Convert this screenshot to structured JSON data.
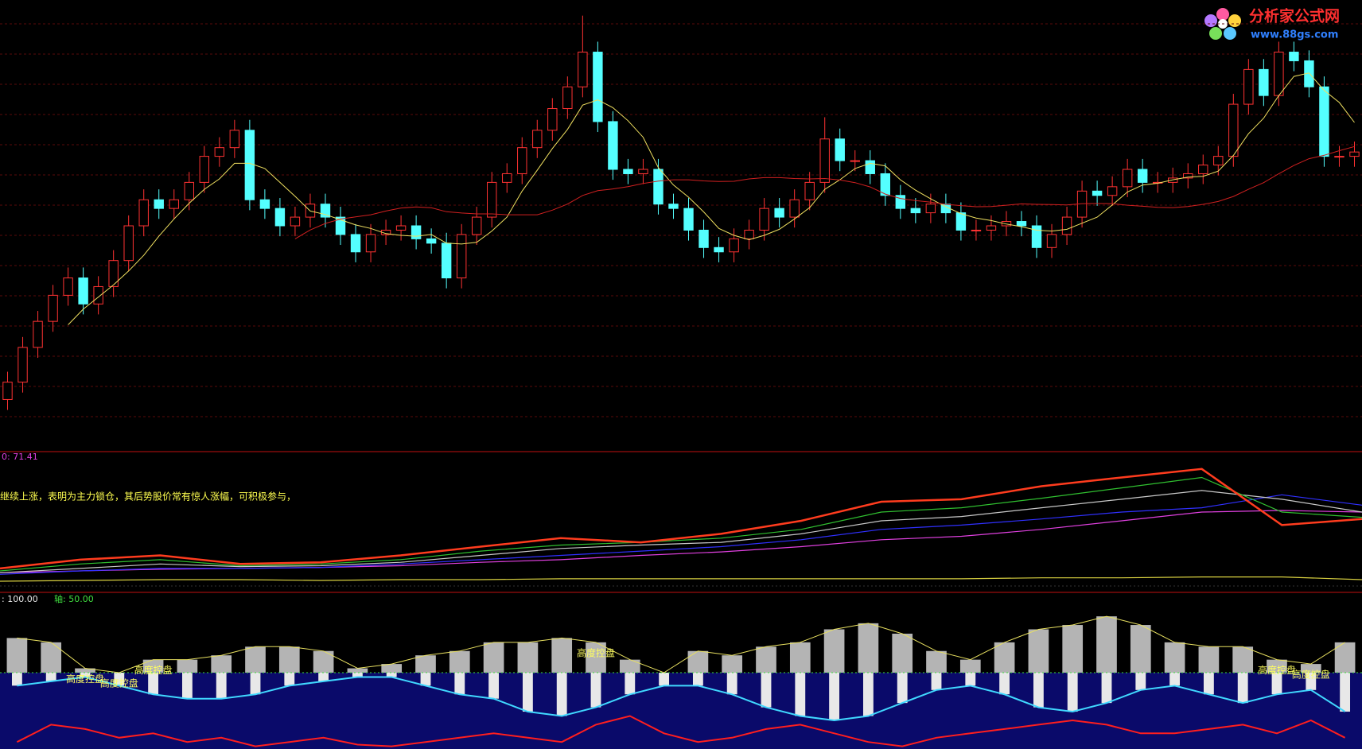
{
  "logo": {
    "name": "分析家公式网",
    "url": "www.88gs.com"
  },
  "chart_data": [
    {
      "type": "candlestick",
      "ylim": [
        0,
        520
      ],
      "up_color": "#ff3232",
      "down_color": "#54ffff",
      "open": [
        60,
        80,
        120,
        150,
        180,
        200,
        170,
        190,
        220,
        260,
        290,
        280,
        290,
        310,
        340,
        350,
        370,
        290,
        280,
        260,
        270,
        285,
        270,
        250,
        230,
        250,
        255,
        260,
        245,
        240,
        200,
        250,
        270,
        310,
        320,
        350,
        370,
        395,
        420,
        460,
        380,
        325,
        320,
        325,
        285,
        280,
        255,
        235,
        230,
        245,
        255,
        280,
        270,
        290,
        310,
        360,
        335,
        335,
        320,
        295,
        280,
        275,
        285,
        275,
        255,
        255,
        260,
        265,
        260,
        235,
        250,
        270,
        300,
        295,
        305,
        325,
        310,
        310,
        315,
        320,
        330,
        340,
        400,
        440,
        410,
        460,
        450,
        420,
        340,
        340
      ],
      "high": [
        92,
        132,
        162,
        192,
        212,
        212,
        202,
        232,
        272,
        302,
        302,
        302,
        322,
        352,
        362,
        382,
        382,
        302,
        292,
        282,
        297,
        297,
        282,
        262,
        262,
        267,
        272,
        272,
        257,
        252,
        262,
        282,
        322,
        332,
        362,
        382,
        407,
        432,
        502,
        472,
        392,
        337,
        337,
        337,
        297,
        292,
        267,
        247,
        257,
        267,
        292,
        292,
        302,
        322,
        385,
        372,
        347,
        347,
        332,
        307,
        292,
        297,
        297,
        287,
        267,
        272,
        277,
        277,
        272,
        262,
        282,
        312,
        312,
        317,
        337,
        337,
        322,
        327,
        332,
        342,
        352,
        412,
        452,
        452,
        472,
        472,
        462,
        432,
        352,
        357
      ],
      "low": [
        48,
        68,
        108,
        138,
        168,
        158,
        158,
        178,
        208,
        248,
        268,
        268,
        278,
        298,
        328,
        338,
        278,
        268,
        248,
        248,
        258,
        258,
        238,
        218,
        218,
        238,
        243,
        233,
        228,
        188,
        188,
        238,
        258,
        298,
        308,
        338,
        358,
        383,
        408,
        368,
        313,
        308,
        308,
        273,
        268,
        243,
        223,
        218,
        218,
        233,
        243,
        258,
        258,
        278,
        298,
        323,
        323,
        308,
        283,
        268,
        263,
        263,
        263,
        243,
        243,
        243,
        248,
        248,
        223,
        223,
        238,
        258,
        283,
        283,
        293,
        298,
        298,
        298,
        303,
        308,
        318,
        328,
        388,
        398,
        398,
        438,
        408,
        328,
        328,
        328
      ],
      "close": [
        80,
        120,
        150,
        180,
        200,
        170,
        190,
        220,
        260,
        290,
        280,
        290,
        310,
        340,
        350,
        370,
        290,
        280,
        260,
        270,
        285,
        270,
        250,
        230,
        250,
        255,
        260,
        245,
        240,
        200,
        250,
        270,
        310,
        320,
        350,
        370,
        395,
        420,
        460,
        380,
        325,
        320,
        325,
        285,
        280,
        255,
        235,
        230,
        245,
        255,
        280,
        270,
        290,
        310,
        360,
        335,
        335,
        320,
        295,
        280,
        275,
        285,
        275,
        255,
        255,
        260,
        265,
        260,
        235,
        250,
        270,
        300,
        295,
        305,
        325,
        310,
        310,
        315,
        320,
        330,
        340,
        400,
        440,
        410,
        460,
        450,
        420,
        340,
        340,
        345
      ]
    },
    {
      "type": "line",
      "label": "0: 71.41",
      "note": "继续上涨，表明为主力锁仓，其后势股价常有惊人涨幅，可积极参与，",
      "ylim": [
        0,
        100
      ],
      "series": [
        {
          "color": "#ff3c1e",
          "values": [
            15.6,
            21.9,
            25,
            18.8,
            20,
            25,
            31.3,
            37.5,
            34.4,
            40.6,
            50,
            63.8,
            65.6,
            75,
            81.3,
            87.5,
            46.9,
            51.3
          ]
        },
        {
          "color": "#30c030",
          "values": [
            13.8,
            18.8,
            21.9,
            17.5,
            18.8,
            21.9,
            28.1,
            32.5,
            34.4,
            37.5,
            43.8,
            56.3,
            59.4,
            66.3,
            73.8,
            81.3,
            56.3,
            52.5
          ]
        },
        {
          "color": "#c8c8c8",
          "values": [
            12.5,
            15.6,
            18.8,
            16.9,
            17.5,
            20,
            25,
            30,
            32.5,
            34.4,
            40.6,
            50,
            53.1,
            59.4,
            65.6,
            71.9,
            65.6,
            56.3
          ]
        },
        {
          "color": "#3030ff",
          "values": [
            11.3,
            13.8,
            15.6,
            15.6,
            16.3,
            18.8,
            21.9,
            25,
            28.1,
            31.3,
            36.3,
            43.8,
            46.9,
            51.3,
            56.3,
            59.4,
            68.8,
            61.3
          ]
        },
        {
          "color": "#e040e0",
          "values": [
            12.5,
            13.8,
            15,
            15.6,
            16.3,
            17.5,
            20,
            21.9,
            25,
            27.5,
            31.3,
            36.3,
            38.8,
            43.8,
            50,
            56.3,
            57.5,
            56.3
          ]
        },
        {
          "color": "#d8d040",
          "values": [
            6.3,
            6.9,
            7.5,
            7.5,
            6.9,
            7.5,
            7.5,
            8.1,
            8.1,
            8.1,
            8.1,
            8.1,
            8.1,
            8.8,
            8.8,
            9.4,
            9.4,
            7.5
          ]
        }
      ]
    },
    {
      "type": "oscillator",
      "ylim": [
        0,
        100
      ],
      "top_label": {
        "value": 100,
        "label": ": 100.00"
      },
      "axis": {
        "value": 50,
        "label": "轴: 50.00"
      },
      "series": [
        {
          "color": "#e8e060",
          "values": [
            70,
            67.5,
            52.5,
            50,
            57.5,
            57.5,
            60,
            65,
            65,
            62.5,
            52.5,
            55,
            60,
            62.5,
            67.5,
            67.5,
            70,
            67.5,
            57.5,
            50,
            62.5,
            60,
            65,
            67.5,
            75,
            78.5,
            72.5,
            62.5,
            57.5,
            67.5,
            75,
            77.5,
            82.5,
            77.5,
            67.5,
            65,
            65,
            57.5,
            55,
            67.5
          ]
        },
        {
          "color": "#40d8ff",
          "values": [
            42.5,
            45,
            47.5,
            42.5,
            37.5,
            35,
            35,
            37.5,
            42.5,
            45,
            47.5,
            47.5,
            42.5,
            37.5,
            35,
            27.5,
            25,
            30,
            37.5,
            42.5,
            42.5,
            37.5,
            30,
            25,
            22.5,
            25,
            32.5,
            40,
            42.5,
            37.5,
            30,
            27.5,
            32.5,
            40,
            42.5,
            37.5,
            32.5,
            37.5,
            40,
            27.5
          ]
        },
        {
          "color": "#ff1e1e",
          "values": [
            10,
            20,
            17.5,
            12.5,
            15,
            10,
            12.5,
            7.5,
            10,
            12.5,
            8.5,
            7.5,
            10,
            12.5,
            15,
            12.5,
            10,
            20,
            25,
            15,
            10,
            12.5,
            17.5,
            20,
            15,
            10,
            7.5,
            12.5,
            15,
            17.5,
            20,
            22.5,
            20,
            15,
            15,
            17.5,
            20,
            15,
            22.5,
            12.5
          ]
        }
      ],
      "annotations": [
        {
          "text": "高度控盘",
          "x": 2
        },
        {
          "text": "高度控盘",
          "x": 3
        },
        {
          "text": "高度控盘",
          "x": 4
        },
        {
          "text": "高度控盘",
          "x": 17
        },
        {
          "text": "高度控盘",
          "x": 37
        },
        {
          "text": "高度控盘",
          "x": 38
        }
      ]
    }
  ]
}
